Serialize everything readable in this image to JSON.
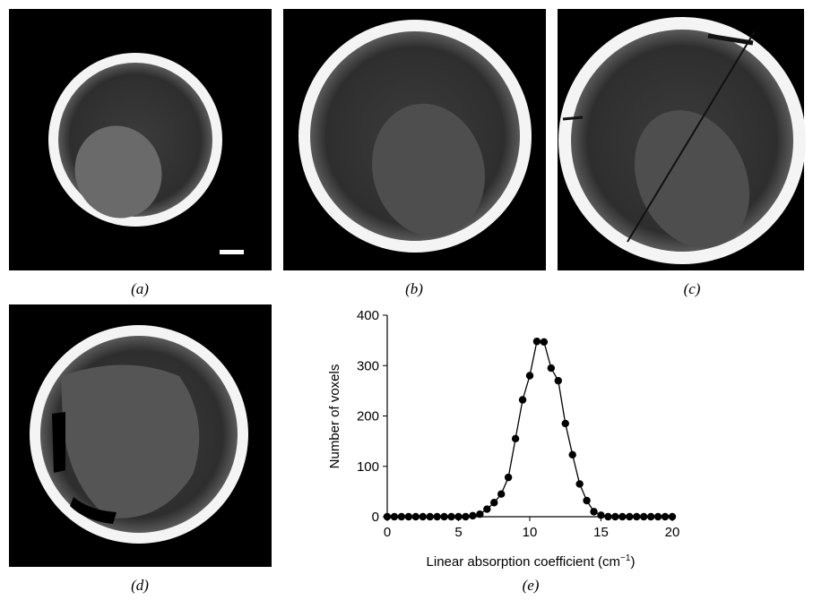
{
  "panel_labels": [
    "(a)",
    "(b)",
    "(c)",
    "(d)",
    "(e)"
  ],
  "chart_data": {
    "type": "line",
    "marker": "circle",
    "color": "#000000",
    "xlabel": [
      "Linear absorption coefficient (cm",
      "−1",
      ")"
    ],
    "ylabel": "Number of voxels",
    "x": [
      0,
      0.5,
      1,
      1.5,
      2,
      2.5,
      3,
      3.5,
      4,
      4.5,
      5,
      5.5,
      6,
      6.5,
      7,
      7.5,
      8,
      8.5,
      9,
      9.5,
      10,
      10.5,
      11,
      11.5,
      12,
      12.5,
      13,
      13.5,
      14,
      14.5,
      15,
      15.5,
      16,
      16.5,
      17,
      17.5,
      18,
      18.5,
      19,
      19.5,
      20
    ],
    "values": [
      0,
      0,
      0,
      0,
      0,
      0,
      0,
      0,
      0,
      0,
      0,
      0,
      2,
      5,
      15,
      28,
      45,
      78,
      155,
      232,
      280,
      348,
      347,
      295,
      270,
      185,
      123,
      65,
      32,
      10,
      3,
      0,
      0,
      0,
      0,
      0,
      0,
      0,
      0,
      0,
      0
    ],
    "xlim": [
      0,
      20
    ],
    "xticks": [
      0,
      5,
      10,
      15,
      20
    ],
    "ylim": [
      0,
      400
    ],
    "yticks": [
      0,
      100,
      200,
      300,
      400
    ]
  }
}
